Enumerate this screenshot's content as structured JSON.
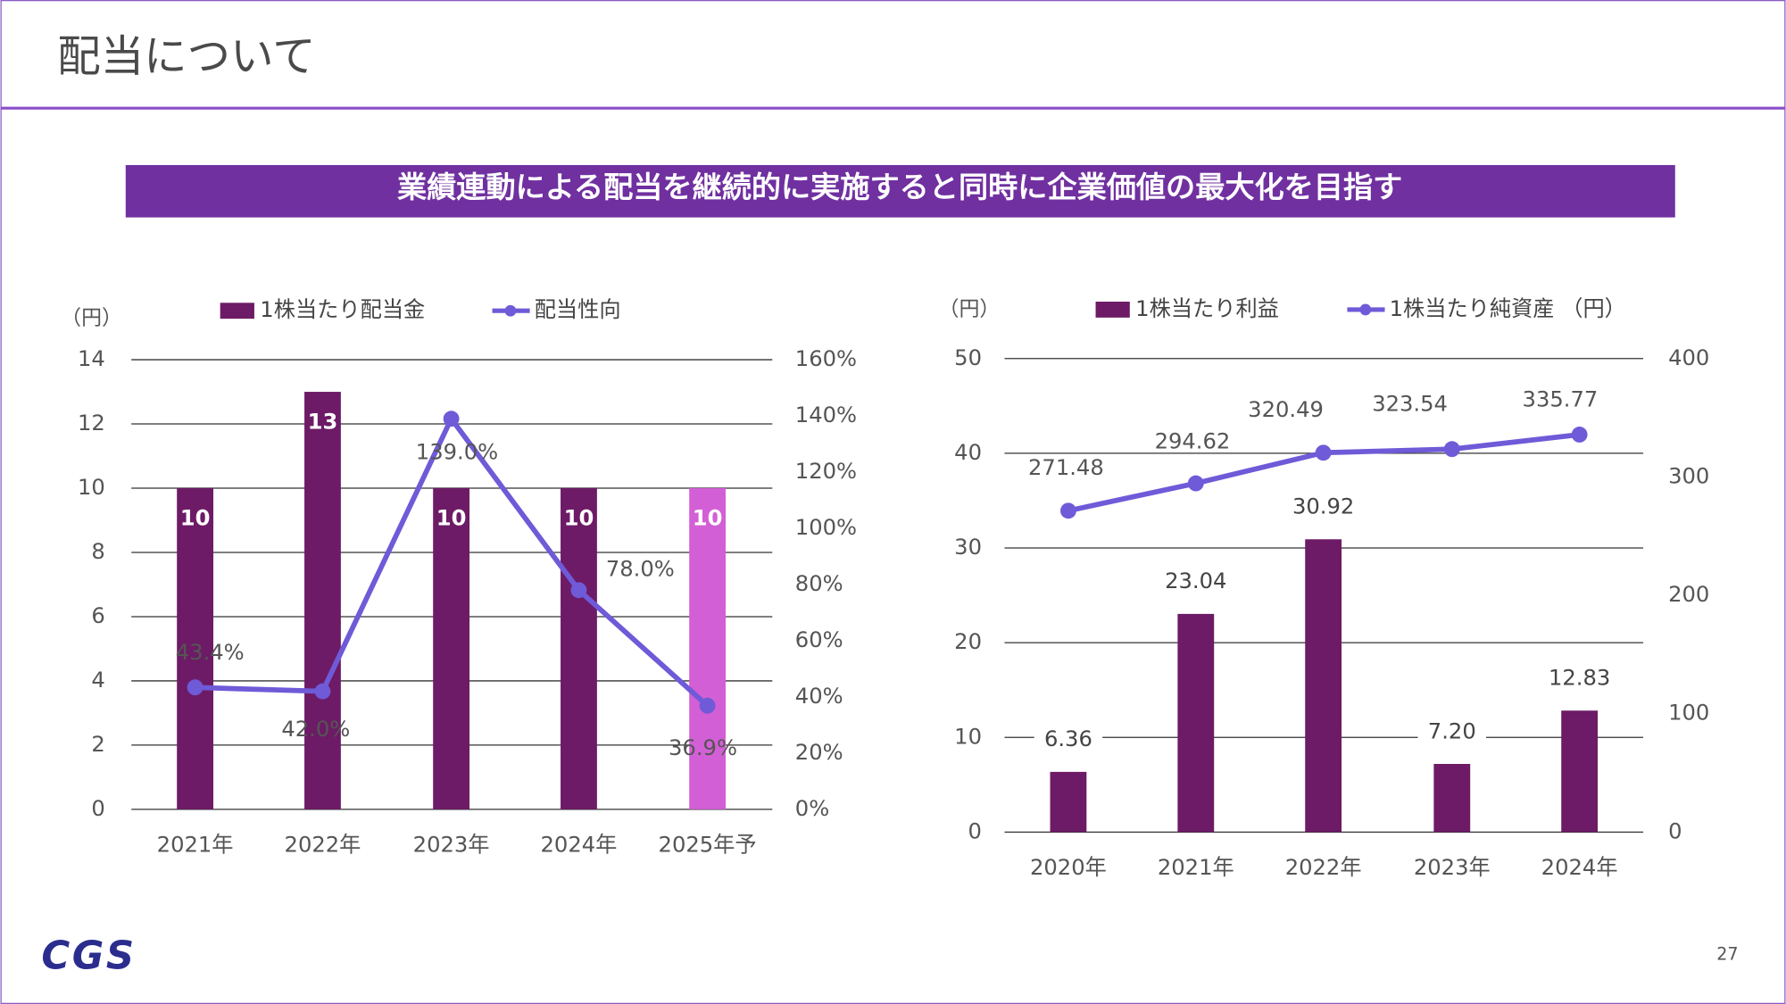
{
  "header": {
    "title": "配当について"
  },
  "banner": "業績連動による配当を継続的に実施すると同時に企業価値の最大化を目指す",
  "footer": {
    "logo": "CGS",
    "page": "27"
  },
  "chart_data": [
    {
      "type": "bar",
      "y_unit": "（円）",
      "categories": [
        "2021年",
        "2022年",
        "2023年",
        "2024年",
        "2025年予"
      ],
      "series": [
        {
          "name": "1株当たり配当金",
          "type": "bar",
          "color": "#6d1b66",
          "colors": [
            "#6d1b66",
            "#6d1b66",
            "#6d1b66",
            "#6d1b66",
            "#d35fd6"
          ],
          "values": [
            10,
            13,
            10,
            10,
            10
          ]
        },
        {
          "name": "配当性向",
          "type": "line",
          "axis": "y2",
          "color": "#6f5ad8",
          "values": [
            43.4,
            42.0,
            139.0,
            78.0,
            36.9
          ],
          "value_labels": [
            "43.4%",
            "42.0%",
            "139.0%",
            "78.0%",
            "36.9%"
          ]
        }
      ],
      "ylim": [
        0,
        14
      ],
      "yticks": [
        0,
        2,
        4,
        6,
        8,
        10,
        12,
        14
      ],
      "y2lim": [
        0,
        160
      ],
      "y2ticks": [
        {
          "value": 0,
          "label": "0%"
        },
        {
          "value": 20,
          "label": "20%"
        },
        {
          "value": 40,
          "label": "40%"
        },
        {
          "value": 60,
          "label": "60%"
        },
        {
          "value": 80,
          "label": "80%"
        },
        {
          "value": 100,
          "label": "100%"
        },
        {
          "value": 120,
          "label": "120%"
        },
        {
          "value": 140,
          "label": "140%"
        },
        {
          "value": 160,
          "label": "160%"
        }
      ],
      "grid": true
    },
    {
      "type": "bar",
      "y_unit": "（円）",
      "categories": [
        "2020年",
        "2021年",
        "2022年",
        "2023年",
        "2024年"
      ],
      "series": [
        {
          "name": "1株当たり利益",
          "type": "bar",
          "color": "#6d1b66",
          "colors": [
            "#6d1b66",
            "#6d1b66",
            "#6d1b66",
            "#6d1b66",
            "#6d1b66"
          ],
          "values": [
            6.36,
            23.04,
            30.92,
            7.2,
            12.83
          ],
          "value_labels": [
            "6.36",
            "23.04",
            "30.92",
            "7.20",
            "12.83"
          ]
        },
        {
          "name": "1株当たり純資産 （円）",
          "type": "line",
          "axis": "y2",
          "color": "#6f5ad8",
          "values": [
            271.48,
            294.62,
            320.49,
            323.54,
            335.77
          ]
        }
      ],
      "ylim": [
        0,
        50
      ],
      "yticks": [
        0,
        10,
        20,
        30,
        40,
        50
      ],
      "y2lim": [
        0,
        400
      ],
      "y2ticks": [
        0,
        100,
        200,
        300,
        400
      ],
      "grid": true
    }
  ]
}
